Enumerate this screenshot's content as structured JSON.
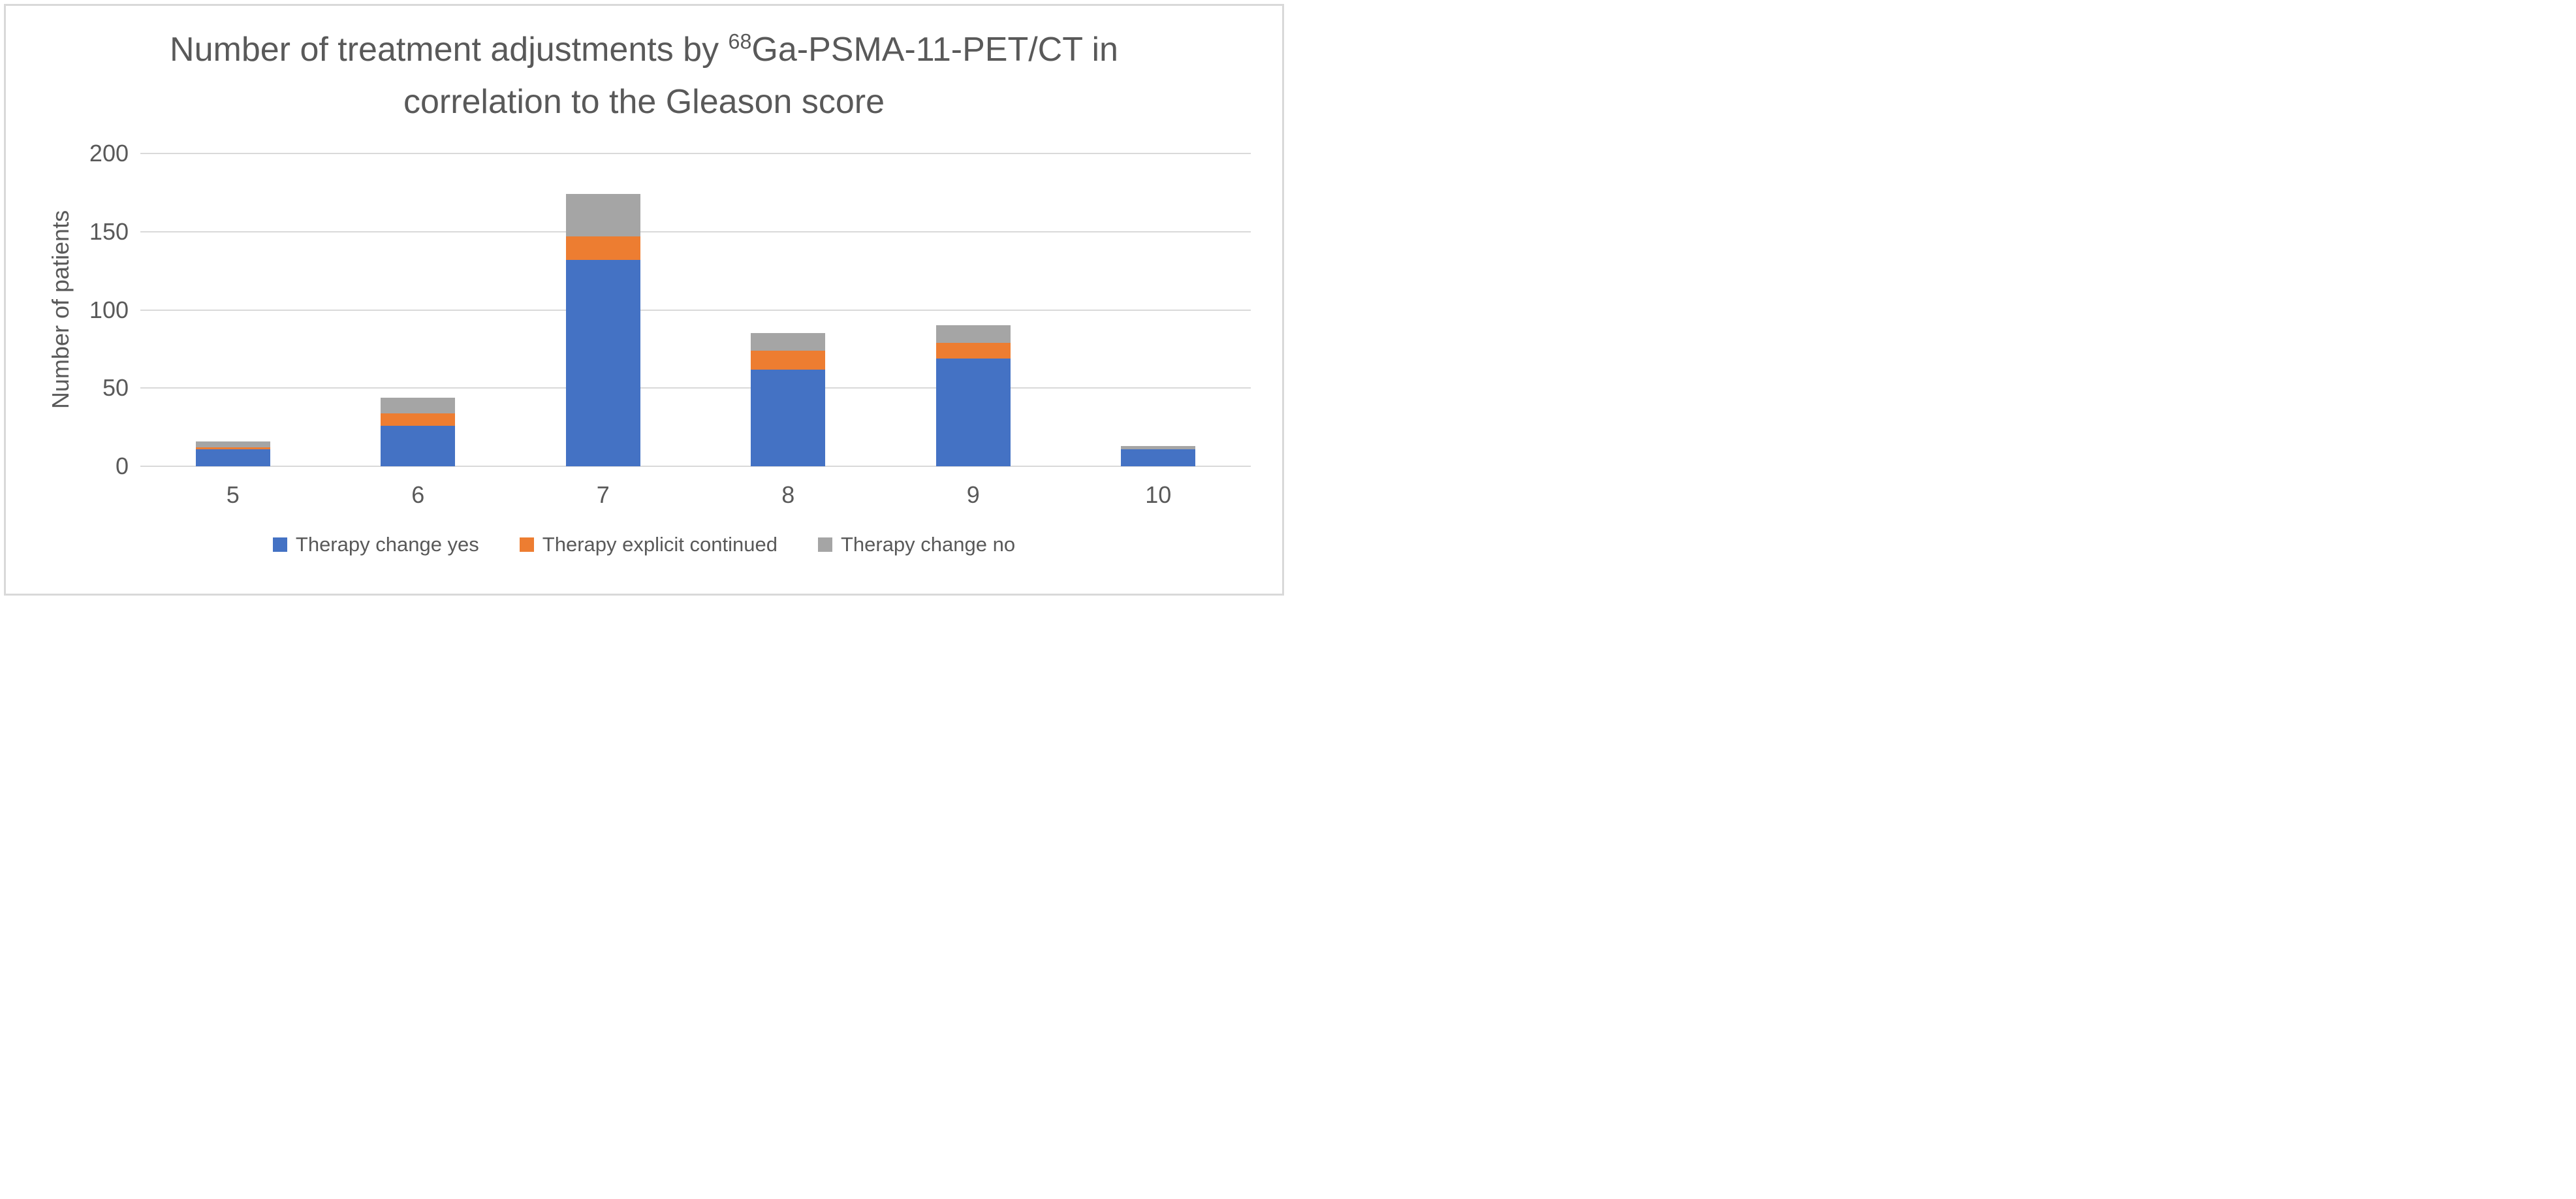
{
  "title": {
    "line1_pre": "Number of treatment adjustments by ",
    "superscript": "68",
    "line1_post": "Ga-PSMA-11-PET/CT in",
    "line2": "correlation to the Gleason score"
  },
  "y_axis": {
    "label": "Number of patients",
    "ticks": [
      0,
      50,
      100,
      150,
      200
    ]
  },
  "x_axis": {
    "categories": [
      "5",
      "6",
      "7",
      "8",
      "9",
      "10"
    ]
  },
  "legend": {
    "items": [
      {
        "label": "Therapy change yes",
        "color": "#4472C4"
      },
      {
        "label": "Therapy explicit continued",
        "color": "#ED7D31"
      },
      {
        "label": "Therapy change no",
        "color": "#A5A5A5"
      }
    ]
  },
  "colors": {
    "series_blue": "#4472C4",
    "series_orange": "#ED7D31",
    "series_gray": "#A5A5A5",
    "gridline": "#D9D9D9",
    "border": "#D9D9D9",
    "text": "#595959"
  },
  "chart_data": {
    "type": "bar",
    "stacked": true,
    "title": "Number of treatment adjustments by 68Ga-PSMA-11-PET/CT in correlation to the Gleason score",
    "xlabel": "",
    "ylabel": "Number of patients",
    "categories": [
      5,
      6,
      7,
      8,
      9,
      10
    ],
    "series": [
      {
        "name": "Therapy change yes",
        "color": "#4472C4",
        "values": [
          11,
          26,
          132,
          62,
          69,
          11
        ]
      },
      {
        "name": "Therapy explicit continued",
        "color": "#ED7D31",
        "values": [
          1,
          8,
          15,
          12,
          10,
          0
        ]
      },
      {
        "name": "Therapy change no",
        "color": "#A5A5A5",
        "values": [
          4,
          10,
          27,
          11,
          11,
          2
        ]
      }
    ],
    "totals": [
      16,
      44,
      174,
      85,
      90,
      13
    ],
    "ylim": [
      0,
      200
    ],
    "yticks": [
      0,
      50,
      100,
      150,
      200
    ],
    "grid": true,
    "legend_position": "bottom"
  }
}
